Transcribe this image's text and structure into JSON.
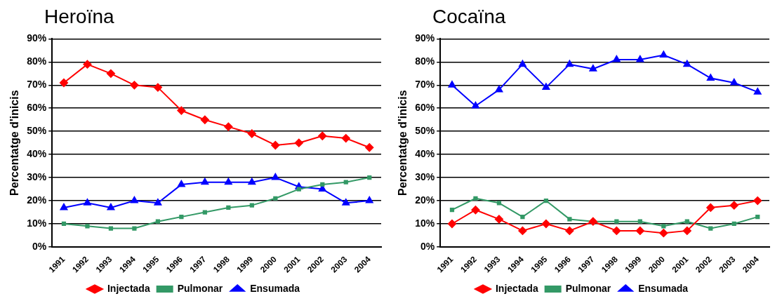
{
  "chart_data": [
    {
      "type": "line",
      "title": "Heroïna",
      "ylabel": "Percentatge d'inicis",
      "categories": [
        "1991",
        "1992",
        "1993",
        "1994",
        "1995",
        "1996",
        "1997",
        "1998",
        "1999",
        "2000",
        "2001",
        "2002",
        "2003",
        "2004"
      ],
      "series": [
        {
          "name": "Injectada",
          "color": "#ff0000",
          "marker": "diamond",
          "values": [
            71,
            79,
            75,
            70,
            69,
            59,
            55,
            52,
            49,
            44,
            45,
            48,
            47,
            43
          ]
        },
        {
          "name": "Pulmonar",
          "color": "#339966",
          "marker": "square",
          "values": [
            10,
            9,
            8,
            8,
            11,
            13,
            15,
            17,
            18,
            21,
            25,
            27,
            28,
            30
          ]
        },
        {
          "name": "Ensumada",
          "color": "#0000ff",
          "marker": "triangle",
          "values": [
            17,
            19,
            17,
            20,
            19,
            27,
            28,
            28,
            28,
            30,
            26,
            25,
            19,
            20
          ]
        }
      ],
      "ylim": [
        0,
        90
      ],
      "yticks": [
        {
          "value": 0,
          "label": "0%"
        },
        {
          "value": 10,
          "label": "10%"
        },
        {
          "value": 20,
          "label": "20%"
        },
        {
          "value": 30,
          "label": "30%"
        },
        {
          "value": 40,
          "label": "40%"
        },
        {
          "value": 50,
          "label": "50%"
        },
        {
          "value": 60,
          "label": "60%"
        },
        {
          "value": 70,
          "label": "70%"
        },
        {
          "value": 80,
          "label": "80%"
        },
        {
          "value": 90,
          "label": "90%"
        }
      ],
      "grid": "y",
      "legend": "bottom"
    },
    {
      "type": "line",
      "title": "Cocaïna",
      "ylabel": "Percentatge d'inicis",
      "categories": [
        "1991",
        "1992",
        "1993",
        "1994",
        "1995",
        "1996",
        "1997",
        "1998",
        "1999",
        "2000",
        "2001",
        "2002",
        "2003",
        "2004"
      ],
      "series": [
        {
          "name": "Injectada",
          "color": "#ff0000",
          "marker": "diamond",
          "values": [
            10,
            16,
            12,
            7,
            10,
            7,
            11,
            7,
            7,
            6,
            7,
            17,
            18,
            20
          ]
        },
        {
          "name": "Pulmonar",
          "color": "#339966",
          "marker": "square",
          "values": [
            16,
            21,
            19,
            13,
            20,
            12,
            11,
            11,
            11,
            9,
            11,
            8,
            10,
            13
          ]
        },
        {
          "name": "Ensumada",
          "color": "#0000ff",
          "marker": "triangle",
          "values": [
            70,
            61,
            68,
            79,
            69,
            79,
            77,
            81,
            81,
            83,
            79,
            73,
            71,
            67
          ]
        }
      ],
      "ylim": [
        0,
        90
      ],
      "yticks": [
        {
          "value": 0,
          "label": "0%"
        },
        {
          "value": 10,
          "label": "10%"
        },
        {
          "value": 20,
          "label": "20%"
        },
        {
          "value": 30,
          "label": "30%"
        },
        {
          "value": 40,
          "label": "40%"
        },
        {
          "value": 50,
          "label": "50%"
        },
        {
          "value": 60,
          "label": "60%"
        },
        {
          "value": 70,
          "label": "70%"
        },
        {
          "value": 80,
          "label": "80%"
        },
        {
          "value": 90,
          "label": "90%"
        }
      ],
      "grid": "y",
      "legend": "bottom"
    }
  ]
}
